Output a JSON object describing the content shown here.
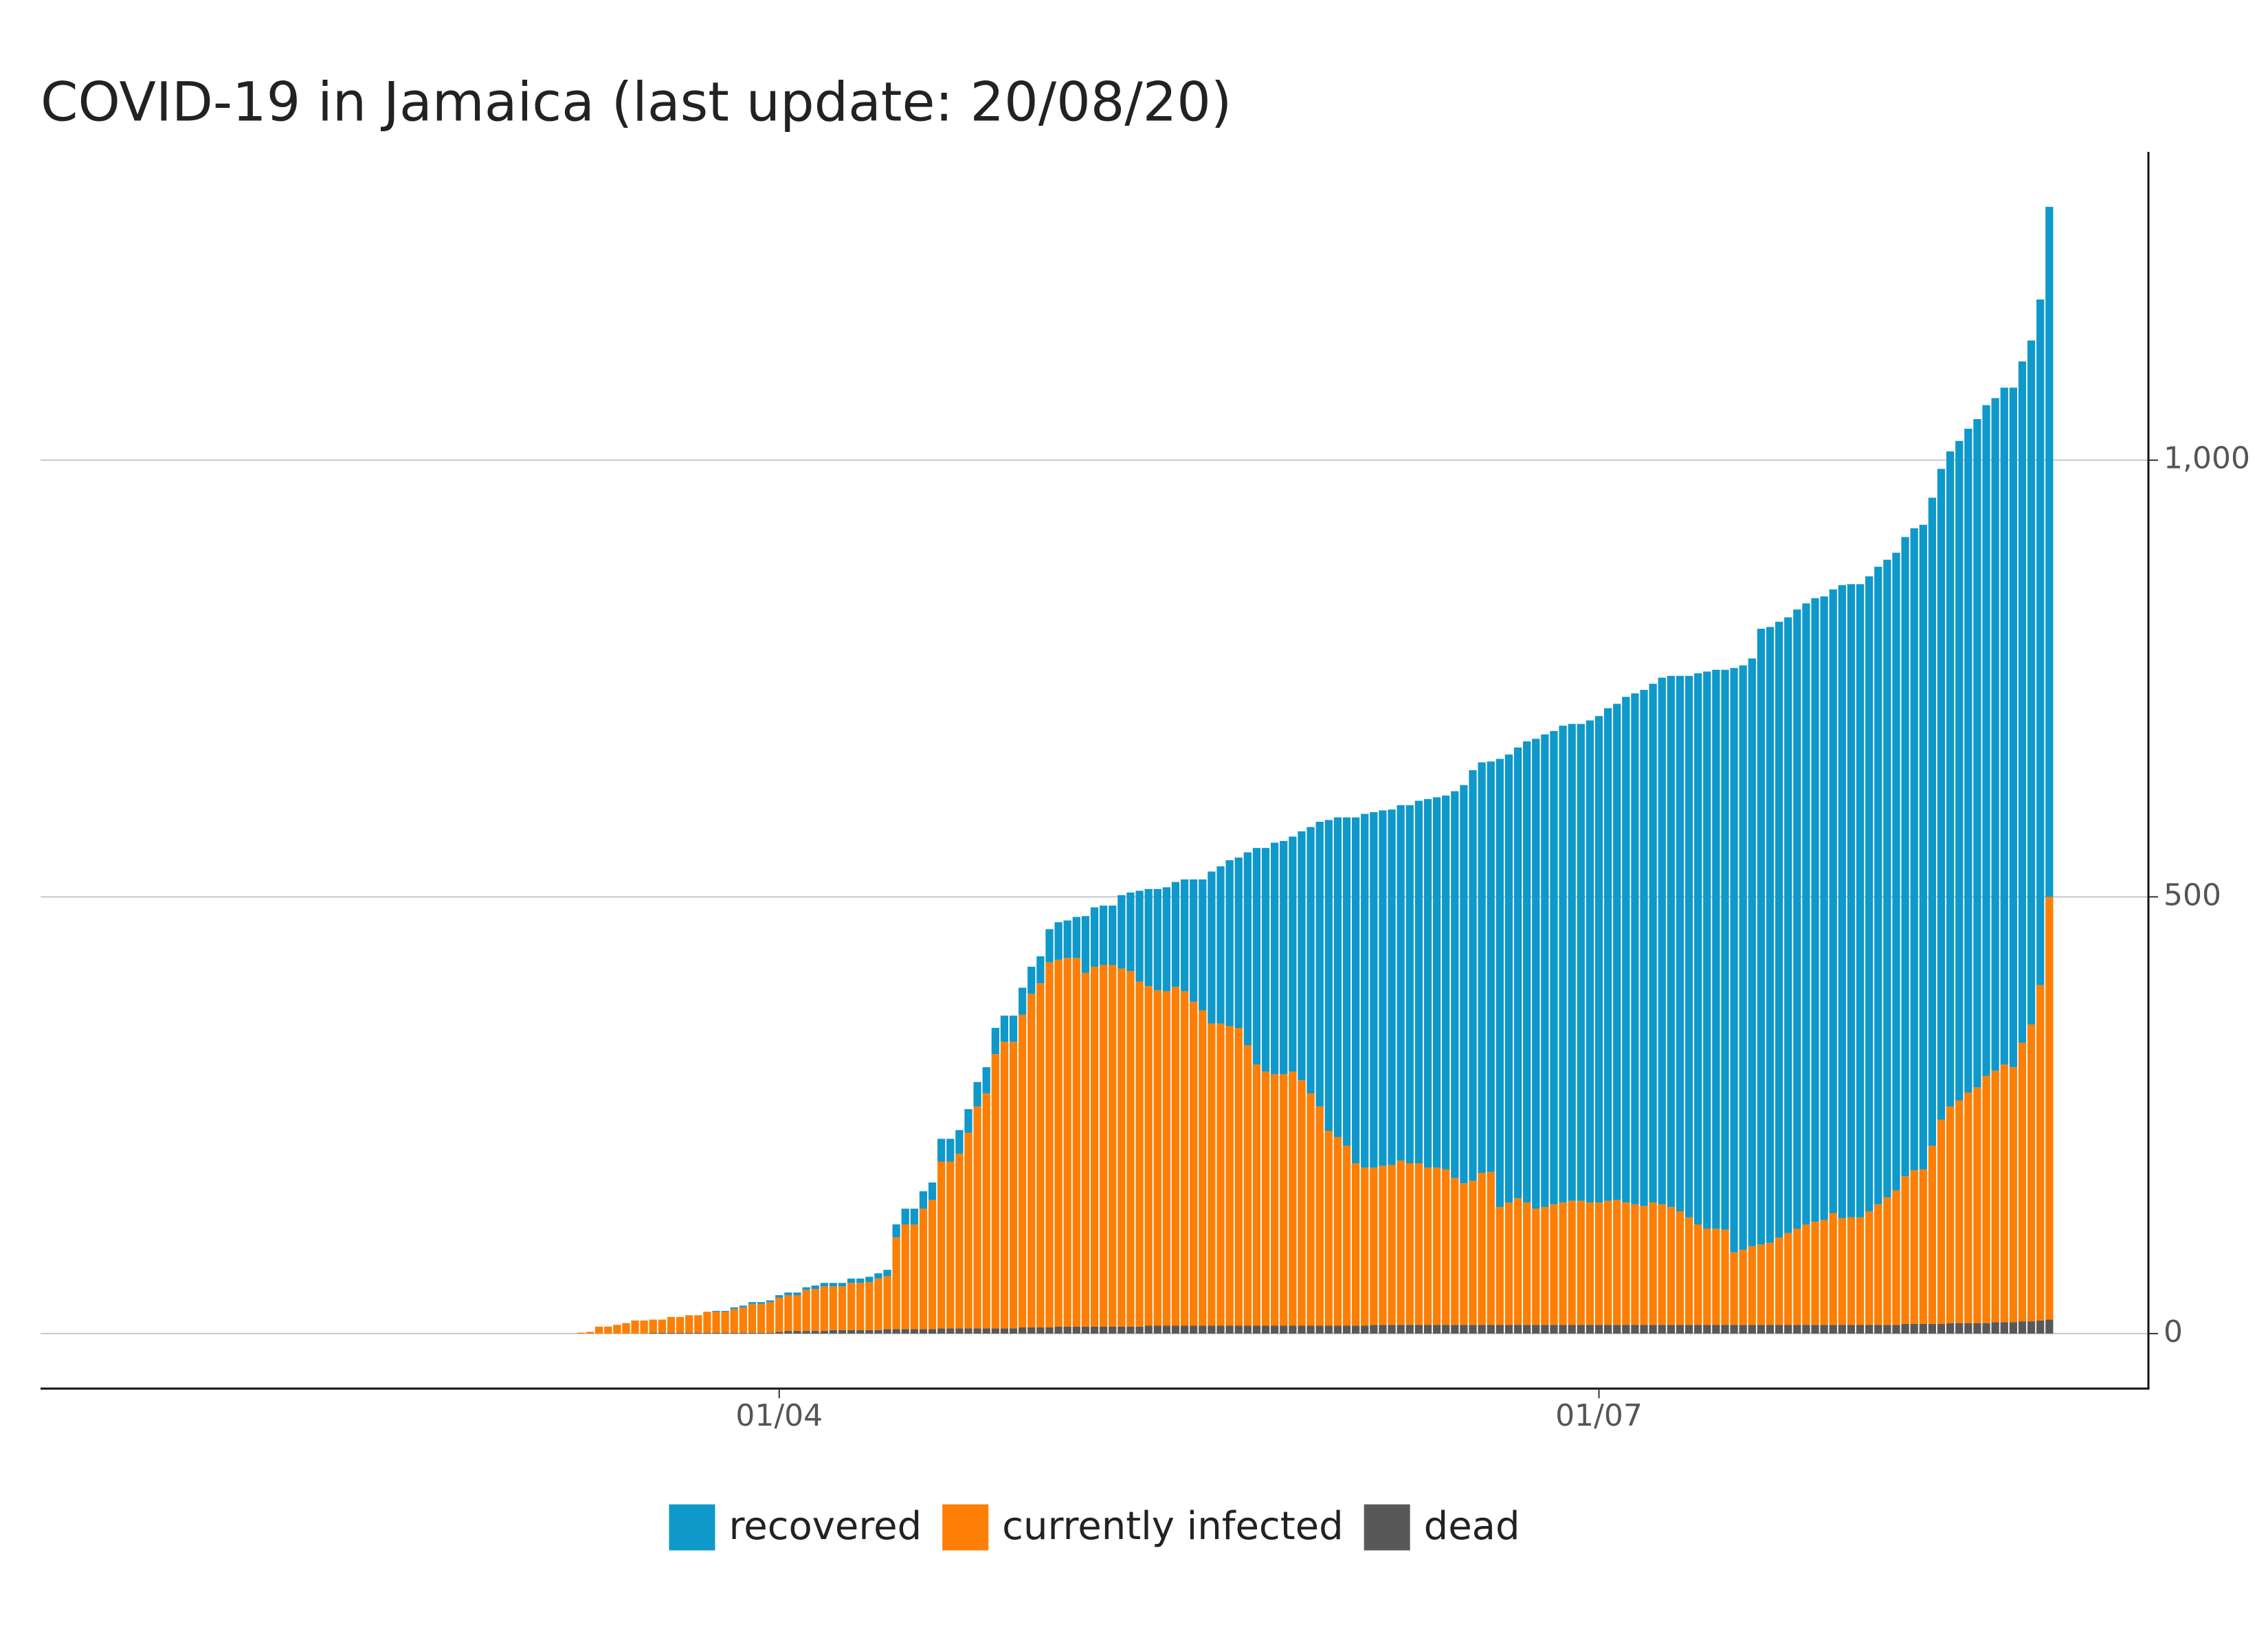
{
  "chart_data": {
    "type": "stacked_bar",
    "title": "COVID-19 in Jamaica (last update: 20/08/20)",
    "x": [
      "10/03",
      "11/03",
      "12/03",
      "13/03",
      "14/03",
      "15/03",
      "16/03",
      "17/03",
      "18/03",
      "19/03",
      "20/03",
      "21/03",
      "22/03",
      "23/03",
      "24/03",
      "25/03",
      "26/03",
      "27/03",
      "28/03",
      "29/03",
      "30/03",
      "31/03",
      "01/04",
      "02/04",
      "03/04",
      "04/04",
      "05/04",
      "06/04",
      "07/04",
      "08/04",
      "09/04",
      "10/04",
      "11/04",
      "12/04",
      "13/04",
      "14/04",
      "15/04",
      "16/04",
      "17/04",
      "18/04",
      "19/04",
      "20/04",
      "21/04",
      "22/04",
      "23/04",
      "24/04",
      "25/04",
      "26/04",
      "27/04",
      "28/04",
      "29/04",
      "30/04",
      "01/05",
      "02/05",
      "03/05",
      "04/05",
      "05/05",
      "06/05",
      "07/05",
      "08/05",
      "09/05",
      "10/05",
      "11/05",
      "12/05",
      "13/05",
      "14/05",
      "15/05",
      "16/05",
      "17/05",
      "18/05",
      "19/05",
      "20/05",
      "21/05",
      "22/05",
      "23/05",
      "24/05",
      "25/05",
      "26/05",
      "27/05",
      "28/05",
      "29/05",
      "30/05",
      "31/05",
      "01/06",
      "02/06",
      "03/06",
      "04/06",
      "05/06",
      "06/06",
      "07/06",
      "08/06",
      "09/06",
      "10/06",
      "11/06",
      "12/06",
      "13/06",
      "14/06",
      "15/06",
      "16/06",
      "17/06",
      "18/06",
      "19/06",
      "20/06",
      "21/06",
      "22/06",
      "23/06",
      "24/06",
      "25/06",
      "26/06",
      "27/06",
      "28/06",
      "29/06",
      "30/06",
      "01/07",
      "02/07",
      "03/07",
      "04/07",
      "05/07",
      "06/07",
      "07/07",
      "08/07",
      "09/07",
      "10/07",
      "11/07",
      "12/07",
      "13/07",
      "14/07",
      "15/07",
      "16/07",
      "17/07",
      "18/07",
      "19/07",
      "20/07",
      "21/07",
      "22/07",
      "23/07",
      "24/07",
      "25/07",
      "26/07",
      "27/07",
      "28/07",
      "29/07",
      "30/07",
      "31/07",
      "01/08",
      "02/08",
      "03/08",
      "04/08",
      "05/08",
      "06/08",
      "07/08",
      "08/08",
      "09/08",
      "10/08",
      "11/08",
      "12/08",
      "13/08",
      "14/08",
      "15/08",
      "16/08",
      "17/08",
      "18/08",
      "19/08",
      "20/08"
    ],
    "series": [
      {
        "name": "recovered",
        "color": "#0f98ca",
        "values": [
          0,
          0,
          0,
          0,
          0,
          0,
          0,
          0,
          0,
          0,
          0,
          0,
          0,
          0,
          0,
          1,
          1,
          2,
          2,
          2,
          2,
          2,
          3,
          3,
          3,
          3,
          4,
          4,
          4,
          4,
          5,
          5,
          6,
          6,
          7,
          15,
          18,
          18,
          20,
          20,
          26,
          26,
          27,
          27,
          28,
          30,
          30,
          30,
          30,
          31,
          31,
          31,
          38,
          43,
          43,
          47,
          65,
          68,
          68,
          68,
          84,
          90,
          104,
          111,
          116,
          119,
          120,
          128,
          140,
          150,
          174,
          180,
          190,
          195,
          221,
          248,
          256,
          265,
          267,
          269,
          285,
          305,
          326,
          356,
          366,
          376,
          396,
          405,
          407,
          407,
          407,
          407,
          410,
          415,
          422,
          424,
          428,
          443,
          456,
          470,
          470,
          470,
          513,
          513,
          516,
          528,
          538,
          541,
          542,
          546,
          546,
          546,
          552,
          557,
          564,
          568,
          579,
          585,
          591,
          594,
          603,
          608,
          613,
          620,
          631,
          638,
          640,
          641,
          669,
          669,
          673,
          705,
          705,
          705,
          705,
          709,
          711,
          714,
          714,
          714,
          725,
          725,
          725,
          727,
          730,
          730,
          730,
          732,
          735,
          738,
          742,
          745,
          750,
          755,
          760,
          765,
          768,
          770,
          775,
          778,
          780,
          783,
          785,
          790
        ]
      },
      {
        "name": "currently infected",
        "color": "#fd7f06",
        "values": [
          1,
          2,
          8,
          8,
          10,
          12,
          15,
          15,
          15,
          15,
          18,
          18,
          20,
          20,
          24,
          24,
          24,
          27,
          29,
          33,
          33,
          35,
          39,
          41,
          41,
          47,
          48,
          51,
          50,
          50,
          54,
          54,
          55,
          59,
          61,
          105,
          120,
          120,
          138,
          148,
          191,
          191,
          200,
          224,
          254,
          269,
          314,
          328,
          328,
          358,
          382,
          394,
          418,
          420,
          422,
          422,
          405,
          412,
          414,
          414,
          410,
          407,
          395,
          389,
          384,
          383,
          388,
          383,
          371,
          361,
          346,
          346,
          343,
          341,
          321,
          299,
          291,
          288,
          288,
          291,
          281,
          266,
          251,
          223,
          216,
          206,
          186,
          181,
          180,
          182,
          183,
          188,
          185,
          185,
          180,
          180,
          178,
          168,
          162,
          165,
          174,
          175,
          135,
          140,
          145,
          140,
          133,
          135,
          138,
          140,
          142,
          142,
          140,
          140,
          142,
          143,
          140,
          138,
          136,
          140,
          138,
          135,
          130,
          123,
          115,
          110,
          110,
          109,
          83,
          86,
          90,
          92,
          94,
          100,
          105,
          110,
          115,
          118,
          120,
          128,
          122,
          123,
          123,
          130,
          138,
          146,
          154,
          169,
          176,
          177,
          204,
          234,
          248,
          255,
          264,
          270,
          283,
          288,
          295,
          292,
          319,
          340,
          384,
          484
        ]
      },
      {
        "name": "dead",
        "color": "#585858",
        "values": [
          0,
          0,
          0,
          0,
          0,
          0,
          0,
          0,
          1,
          1,
          1,
          1,
          1,
          1,
          1,
          1,
          1,
          1,
          1,
          1,
          1,
          1,
          2,
          3,
          3,
          3,
          3,
          3,
          4,
          4,
          4,
          4,
          4,
          4,
          5,
          5,
          5,
          5,
          5,
          5,
          6,
          6,
          6,
          6,
          6,
          6,
          6,
          6,
          6,
          7,
          7,
          7,
          7,
          8,
          8,
          8,
          8,
          8,
          8,
          8,
          8,
          8,
          8,
          9,
          9,
          9,
          9,
          9,
          9,
          9,
          9,
          9,
          9,
          9,
          9,
          9,
          9,
          9,
          9,
          9,
          9,
          9,
          9,
          9,
          9,
          9,
          9,
          9,
          10,
          10,
          10,
          10,
          10,
          10,
          10,
          10,
          10,
          10,
          10,
          10,
          10,
          10,
          10,
          10,
          10,
          10,
          10,
          10,
          10,
          10,
          10,
          10,
          10,
          10,
          10,
          10,
          10,
          10,
          10,
          10,
          10,
          10,
          10,
          10,
          10,
          10,
          10,
          10,
          10,
          10,
          10,
          10,
          10,
          10,
          10,
          10,
          10,
          10,
          10,
          10,
          10,
          10,
          10,
          10,
          10,
          10,
          10,
          11,
          11,
          11,
          11,
          11,
          12,
          12,
          12,
          12,
          12,
          13,
          13,
          13,
          14,
          14,
          15,
          16
        ]
      }
    ],
    "xlim": [
      "10/01",
      "31/08"
    ],
    "xticks": [
      "01/04",
      "01/07"
    ],
    "ylim": [
      -63,
      1353
    ],
    "yticks": [
      0,
      500,
      {
        "value": 1000,
        "label": "1,000"
      }
    ],
    "grid": true,
    "legend": "bottom"
  }
}
